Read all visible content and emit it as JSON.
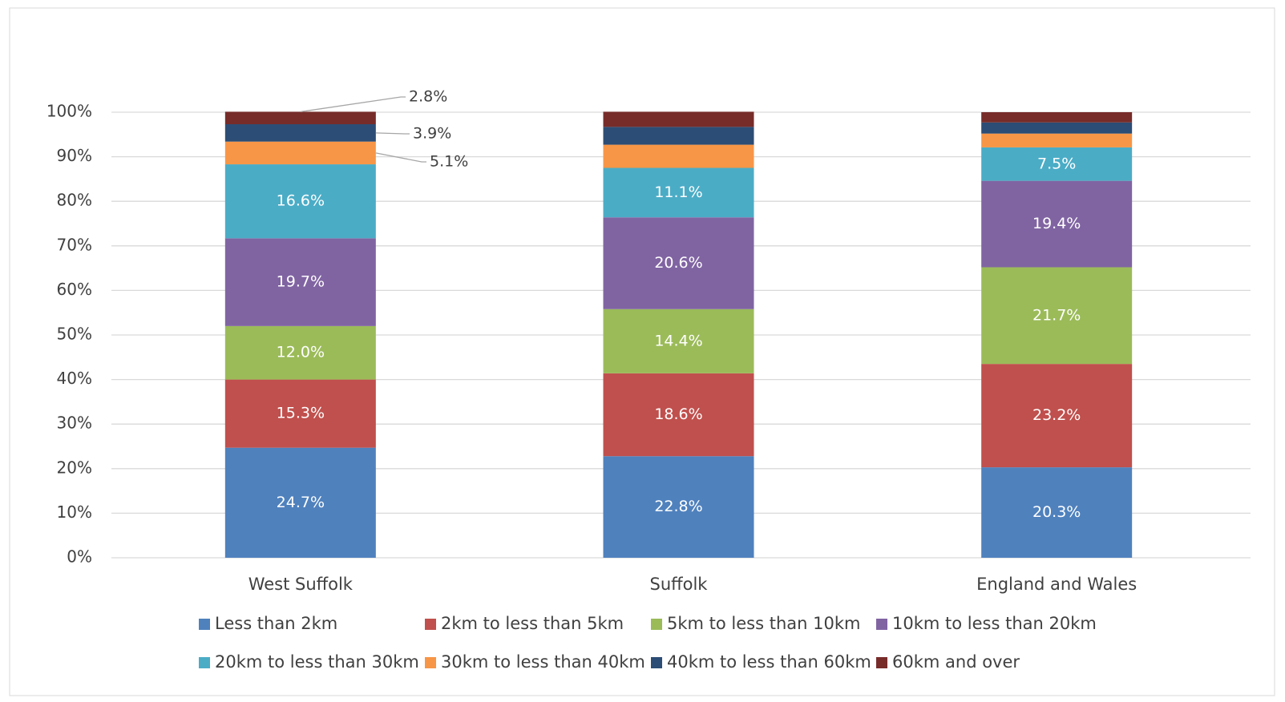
{
  "chart_data": {
    "type": "stacked_bar",
    "categories": [
      "West Suffolk",
      "Suffolk",
      "England and Wales"
    ],
    "series": [
      {
        "name": "Less than 2km",
        "color": "#4f81bd",
        "values": [
          24.7,
          22.8,
          20.3
        ],
        "value_labels": [
          "24.7%",
          "22.8%",
          "20.3%"
        ]
      },
      {
        "name": "2km to less than 5km",
        "color": "#c0504d",
        "values": [
          15.3,
          18.6,
          23.2
        ],
        "value_labels": [
          "15.3%",
          "18.6%",
          "23.2%"
        ]
      },
      {
        "name": "5km to less than 10km",
        "color": "#9bbb59",
        "values": [
          12.0,
          14.4,
          21.7
        ],
        "value_labels": [
          "12.0%",
          "14.4%",
          "21.7%"
        ]
      },
      {
        "name": "10km to less than 20km",
        "color": "#8064a2",
        "values": [
          19.7,
          20.6,
          19.4
        ],
        "value_labels": [
          "19.7%",
          "20.6%",
          "19.4%"
        ]
      },
      {
        "name": "20km to less than 30km",
        "color": "#4bacc6",
        "values": [
          16.6,
          11.1,
          7.5
        ],
        "value_labels": [
          "16.6%",
          "11.1%",
          "7.5%"
        ]
      },
      {
        "name": "30km to less than 40km",
        "color": "#f79646",
        "values": [
          5.1,
          5.2,
          3.1
        ],
        "value_labels": [
          "5.1%",
          null,
          null
        ]
      },
      {
        "name": "40km to less than 60km",
        "color": "#2c4d75",
        "values": [
          3.9,
          4.0,
          2.5
        ],
        "value_labels": [
          "3.9%",
          null,
          null
        ]
      },
      {
        "name": "60km and over",
        "color": "#772c2a",
        "values": [
          2.8,
          3.4,
          2.3
        ],
        "value_labels": [
          "2.8%",
          null,
          null
        ]
      }
    ],
    "ylim": [
      0,
      100
    ],
    "yticks": [
      {
        "value": 0,
        "label": "0%"
      },
      {
        "value": 10,
        "label": "10%"
      },
      {
        "value": 20,
        "label": "20%"
      },
      {
        "value": 30,
        "label": "30%"
      },
      {
        "value": 40,
        "label": "40%"
      },
      {
        "value": 50,
        "label": "50%"
      },
      {
        "value": 60,
        "label": "60%"
      },
      {
        "value": 70,
        "label": "70%"
      },
      {
        "value": 80,
        "label": "80%"
      },
      {
        "value": 90,
        "label": "90%"
      },
      {
        "value": 100,
        "label": "100%"
      }
    ],
    "grid": true,
    "legend": "bottom"
  }
}
